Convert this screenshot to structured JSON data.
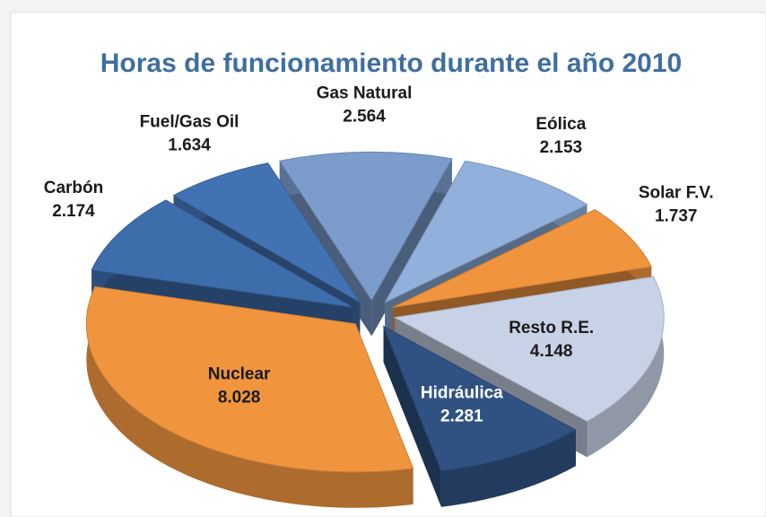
{
  "chart_data": {
    "type": "pie",
    "title": "Horas de funcionamiento durante el año 2010",
    "categories": [
      "Gas Natural",
      "Eólica",
      "Solar F.V.",
      "Resto R.E.",
      "Hidráulica",
      "Nuclear",
      "Carbón",
      "Fuel/Gas Oil"
    ],
    "values": [
      2564,
      2153,
      1737,
      4148,
      2281,
      8028,
      2174,
      1634
    ],
    "value_labels": [
      "2.564",
      "2.153",
      "1.737",
      "4.148",
      "2.281",
      "8.028",
      "2.174",
      "1.634"
    ],
    "colors": [
      "#7c9dcb",
      "#91b0dc",
      "#f0953e",
      "#c8d2e6",
      "#2f5282",
      "#f0953e",
      "#3e6dab",
      "#4272b3"
    ]
  }
}
